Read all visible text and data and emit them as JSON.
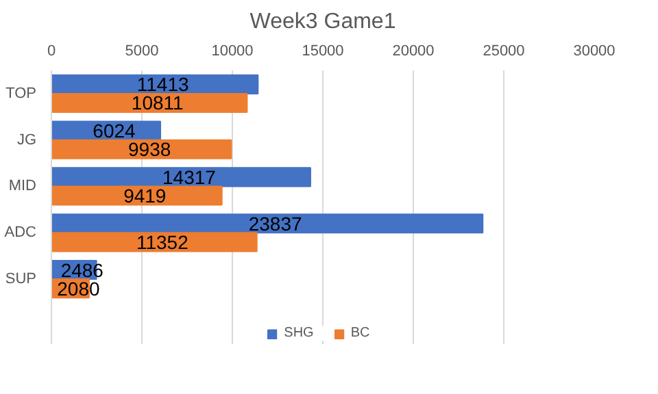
{
  "chart_data": {
    "type": "bar",
    "orientation": "horizontal",
    "title": "Week3 Game1",
    "categories": [
      "TOP",
      "JG",
      "MID",
      "ADC",
      "SUP"
    ],
    "series": [
      {
        "name": "SHG",
        "color": "#4472c4",
        "values": [
          11413,
          6024,
          14317,
          23837,
          2486
        ]
      },
      {
        "name": "BC",
        "color": "#ed7d31",
        "values": [
          10811,
          9938,
          9419,
          11352,
          2080
        ]
      }
    ],
    "xlim": [
      0,
      30000
    ],
    "xticks": [
      0,
      5000,
      10000,
      15000,
      20000,
      25000,
      30000
    ],
    "grid": "x",
    "legend": "bottom",
    "data_labels": true
  }
}
